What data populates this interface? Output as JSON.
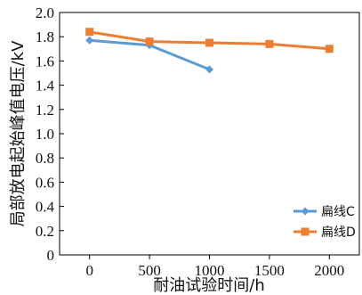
{
  "chart_data": {
    "type": "line",
    "xlabel": "耐油试验时间/h",
    "ylabel": "局部放电起始峰值电压/kV",
    "x_ticks": [
      "0",
      "500",
      "1000",
      "1500",
      "2000"
    ],
    "y_ticks": [
      "0",
      "0.2",
      "0.4",
      "0.6",
      "0.8",
      "1.0",
      "1.2",
      "1.4",
      "1.6",
      "1.8",
      "2.0"
    ],
    "xlim": [
      -250,
      2250
    ],
    "ylim": [
      0,
      2.0
    ],
    "grid": false,
    "legend_position": "bottom-right",
    "series": [
      {
        "name": "扁线C",
        "color": "#5B9BD5",
        "marker": "diamond",
        "x": [
          0,
          500,
          1000
        ],
        "y": [
          1.77,
          1.73,
          1.53
        ]
      },
      {
        "name": "扁线D",
        "color": "#ED7D31",
        "marker": "square",
        "x": [
          0,
          500,
          1000,
          1500,
          2000
        ],
        "y": [
          1.84,
          1.76,
          1.75,
          1.74,
          1.7
        ]
      }
    ]
  }
}
